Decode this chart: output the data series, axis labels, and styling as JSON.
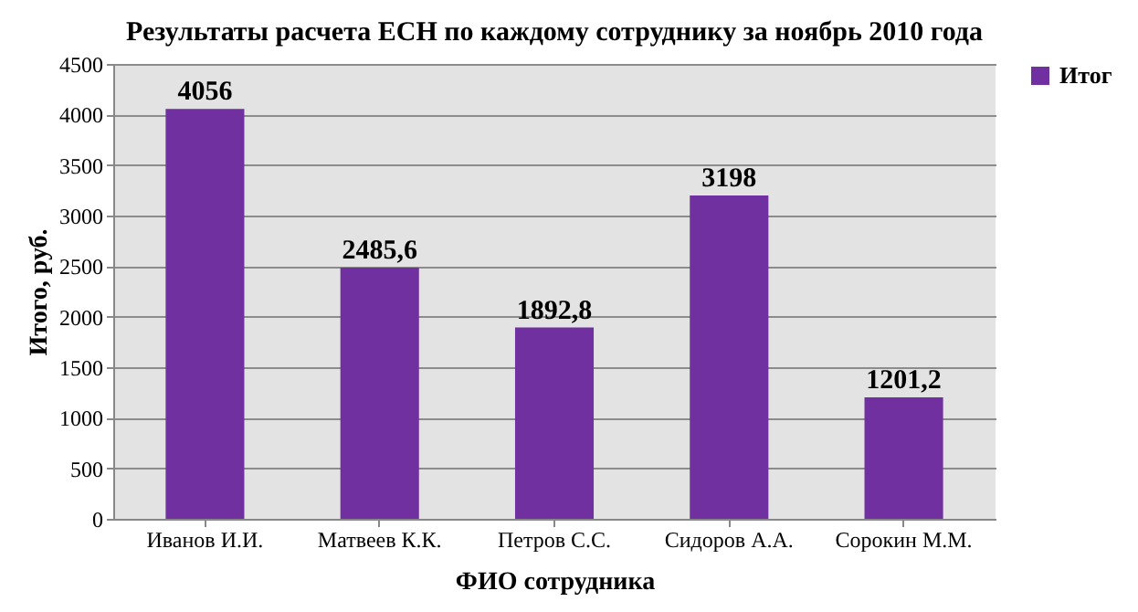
{
  "chart_data": {
    "type": "bar",
    "title": "Результаты расчета ЕСН по каждому сотруднику за ноябрь 2010 года",
    "xlabel": "ФИО сотрудника",
    "ylabel": "Итого, руб.",
    "categories": [
      "Иванов И.И.",
      "Матвеев К.К.",
      "Петров С.С.",
      "Сидоров А.А.",
      "Сорокин М.М."
    ],
    "series": [
      {
        "name": "Итог",
        "color": "#7030a0",
        "values": [
          4056,
          2485.6,
          1892.8,
          3198,
          1201.2
        ],
        "value_labels": [
          "4056",
          "2485,6",
          "1892,8",
          "3198",
          "1201,2"
        ]
      }
    ],
    "ylim": [
      0,
      4500
    ],
    "yticks": [
      0,
      500,
      1000,
      1500,
      2000,
      2500,
      3000,
      3500,
      4000,
      4500
    ],
    "grid": "y",
    "legend": "right"
  }
}
